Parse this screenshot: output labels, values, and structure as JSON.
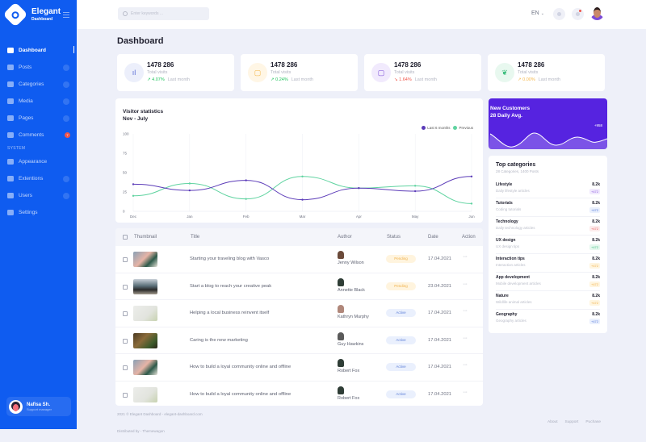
{
  "brand": {
    "name": "Elegant",
    "subtitle": "Dashboard"
  },
  "sidebar": {
    "items": [
      {
        "label": "Dashboard",
        "icon": "home-icon",
        "active": true,
        "chevron": false
      },
      {
        "label": "Posts",
        "icon": "document-icon",
        "chevron": true
      },
      {
        "label": "Categories",
        "icon": "folder-icon",
        "chevron": true
      },
      {
        "label": "Media",
        "icon": "image-icon",
        "chevron": true
      },
      {
        "label": "Pages",
        "icon": "page-icon",
        "chevron": true
      },
      {
        "label": "Comments",
        "icon": "comment-icon",
        "badge": "7"
      }
    ],
    "section_label": "SYSTEM",
    "system_items": [
      {
        "label": "Appearance",
        "icon": "brush-icon",
        "chevron": false
      },
      {
        "label": "Extentions",
        "icon": "grid-icon",
        "chevron": true
      },
      {
        "label": "Users",
        "icon": "users-icon",
        "chevron": true
      },
      {
        "label": "Settings",
        "icon": "gear-icon",
        "chevron": false
      }
    ],
    "user": {
      "name": "Nafisa Sh.",
      "role": "Support manager"
    }
  },
  "topbar": {
    "search_placeholder": "Enter keywords ...",
    "language": "EN",
    "language_chevron": "⌄"
  },
  "page": {
    "title": "Dashboard"
  },
  "stats": [
    {
      "value": "1478 286",
      "label": "Total visits",
      "trend": "4.07%",
      "trend_dir": "up",
      "period": "Last month",
      "icon": "bar-chart-icon",
      "color": "#22c55e",
      "bg": "#eceffb",
      "icon_color": "#5c6fd6",
      "glyph": "ıl"
    },
    {
      "value": "1478 286",
      "label": "Total visits",
      "trend": "0.24%",
      "trend_dir": "up",
      "period": "Last month",
      "icon": "file-icon",
      "color": "#22c55e",
      "bg": "#fff6e5",
      "icon_color": "#f5b74a",
      "glyph": "▢"
    },
    {
      "value": "1478 286",
      "label": "Total visits",
      "trend": "1.64%",
      "trend_dir": "down",
      "period": "Last month",
      "icon": "file-icon",
      "color": "#f0554a",
      "bg": "#f1eafd",
      "icon_color": "#7a4ad6",
      "glyph": "▢"
    },
    {
      "value": "1478 286",
      "label": "Total visits",
      "trend": "0.00%",
      "trend_dir": "up",
      "period": "Last month",
      "icon": "feather-icon",
      "color": "#f5b74a",
      "bg": "#e8f8ef",
      "icon_color": "#3bbd7c",
      "glyph": "❦"
    }
  ],
  "visitor_chart": {
    "title": "Visitor statistics",
    "subtitle": "Nov - July"
  },
  "chart_data": {
    "type": "line",
    "title": "Visitor statistics",
    "subtitle": "Nov - July",
    "categories": [
      "Dec",
      "Jan",
      "Feb",
      "Mar",
      "Apr",
      "May",
      "Jun"
    ],
    "series": [
      {
        "name": "Last 6 months",
        "color": "#5b3bb8",
        "values": [
          35,
          27,
          40,
          15,
          30,
          26,
          45
        ]
      },
      {
        "name": "Previous",
        "color": "#5fd3a0",
        "values": [
          20,
          36,
          16,
          45,
          30,
          33,
          10
        ]
      }
    ],
    "yticks": [
      0,
      25,
      50,
      75,
      100
    ],
    "ylim": [
      0,
      100
    ],
    "grid": true,
    "legend_position": "top-right",
    "xlabel": "",
    "ylabel": ""
  },
  "new_customers": {
    "title": "New Customers",
    "subtitle": "28 Daily Avg.",
    "delta": "+958"
  },
  "top_categories": {
    "title": "Top categories",
    "subtitle": "28 Categories, 1400 Posts",
    "items": [
      {
        "name": "Lifestyle",
        "desc": "Daily lifestyle articles",
        "value": "8.2k",
        "badge": "+472",
        "badge_bg": "#f1eafd",
        "badge_color": "#8a5ae0"
      },
      {
        "name": "Tutorials",
        "desc": "Coding tutorials",
        "value": "8.2k",
        "badge": "+472",
        "badge_bg": "#eaf0fd",
        "badge_color": "#4f74d8"
      },
      {
        "name": "Technology",
        "desc": "Daily technology articles",
        "value": "8.2k",
        "badge": "+472",
        "badge_bg": "#fdecec",
        "badge_color": "#e85d5d"
      },
      {
        "name": "UX design",
        "desc": "UX design tips",
        "value": "8.2k",
        "badge": "+472",
        "badge_bg": "#e6f8ef",
        "badge_color": "#3bbd7c"
      },
      {
        "name": "Interaction tips",
        "desc": "Interaction articles",
        "value": "8.2k",
        "badge": "+472",
        "badge_bg": "#fff5df",
        "badge_color": "#f0b049"
      },
      {
        "name": "App development",
        "desc": "Mobile development articles",
        "value": "8.2k",
        "badge": "+472",
        "badge_bg": "#fff5df",
        "badge_color": "#f0b049"
      },
      {
        "name": "Nature",
        "desc": "Wildlife animal articles",
        "value": "8.2k",
        "badge": "+472",
        "badge_bg": "#fff5df",
        "badge_color": "#f0b049"
      },
      {
        "name": "Geography",
        "desc": "Geography articles",
        "value": "8.2k",
        "badge": "+472",
        "badge_bg": "#eaf0fd",
        "badge_color": "#4f74d8"
      }
    ]
  },
  "posts_table": {
    "columns": [
      "Thumbnail",
      "Title",
      "Author",
      "Status",
      "Date",
      "Action"
    ],
    "rows": [
      {
        "title": "Starting your traveling blog with Vasco",
        "author": "Jenny Wilson",
        "status": "Pending",
        "date": "17.04.2021",
        "action": "···",
        "thumb": "linear-gradient(135deg,#8aa0b5 0%,#e6b4a6 45%,#2d5a4a 70%,#e9e5dc 100%)",
        "av": "#6b4a3a"
      },
      {
        "title": "Start a blog to reach your creative peak",
        "author": "Annette Black",
        "status": "Pending",
        "date": "23.04.2021",
        "action": "···",
        "thumb": "linear-gradient(180deg,#c8d0d8 0%,#5a6e77 45%,#2a2a2a 70%,#a39b8e 100%)",
        "av": "#2f3d36"
      },
      {
        "title": "Helping a local business reinvent itself",
        "author": "Kathryn Murphy",
        "status": "Active",
        "date": "17.04.2021",
        "action": "···",
        "thumb": "linear-gradient(135deg,#ecedea 0%,#e2e4de 60%,#c7d2b0 100%)",
        "av": "#b0877a"
      },
      {
        "title": "Caring is the new marketing",
        "author": "Guy Hawkins",
        "status": "Active",
        "date": "17.04.2021",
        "action": "···",
        "thumb": "linear-gradient(135deg,#4a3a22 0%,#8a6a3a 40%,#3c5a2a 75%,#2a2418 100%)",
        "av": "#5a5a5a"
      },
      {
        "title": "How to build a loyal community online and offline",
        "author": "Robert Fox",
        "status": "Active",
        "date": "17.04.2021",
        "action": "···",
        "thumb": "linear-gradient(135deg,#8aa0b5 0%,#e6b4a6 45%,#2d5a4a 70%,#e9e5dc 100%)",
        "av": "#2f3d36"
      },
      {
        "title": "How to build a loyal community online and offline",
        "author": "Robert Fox",
        "status": "Active",
        "date": "17.04.2021",
        "action": "···",
        "thumb": "linear-gradient(135deg,#ecedea 0%,#e2e4de 60%,#c7d2b0 100%)",
        "av": "#2f3d36"
      }
    ]
  },
  "footer": {
    "copyright": "2021 © Elegant Dashboard - elegant-dashboard.com",
    "distributed": "Distributed by - Themewagon",
    "links": [
      "About",
      "Support",
      "Puchase"
    ]
  },
  "colors": {
    "sidebar": "#0f5cf0",
    "accent_purple": "#5623e0",
    "background": "#eef0f9"
  }
}
